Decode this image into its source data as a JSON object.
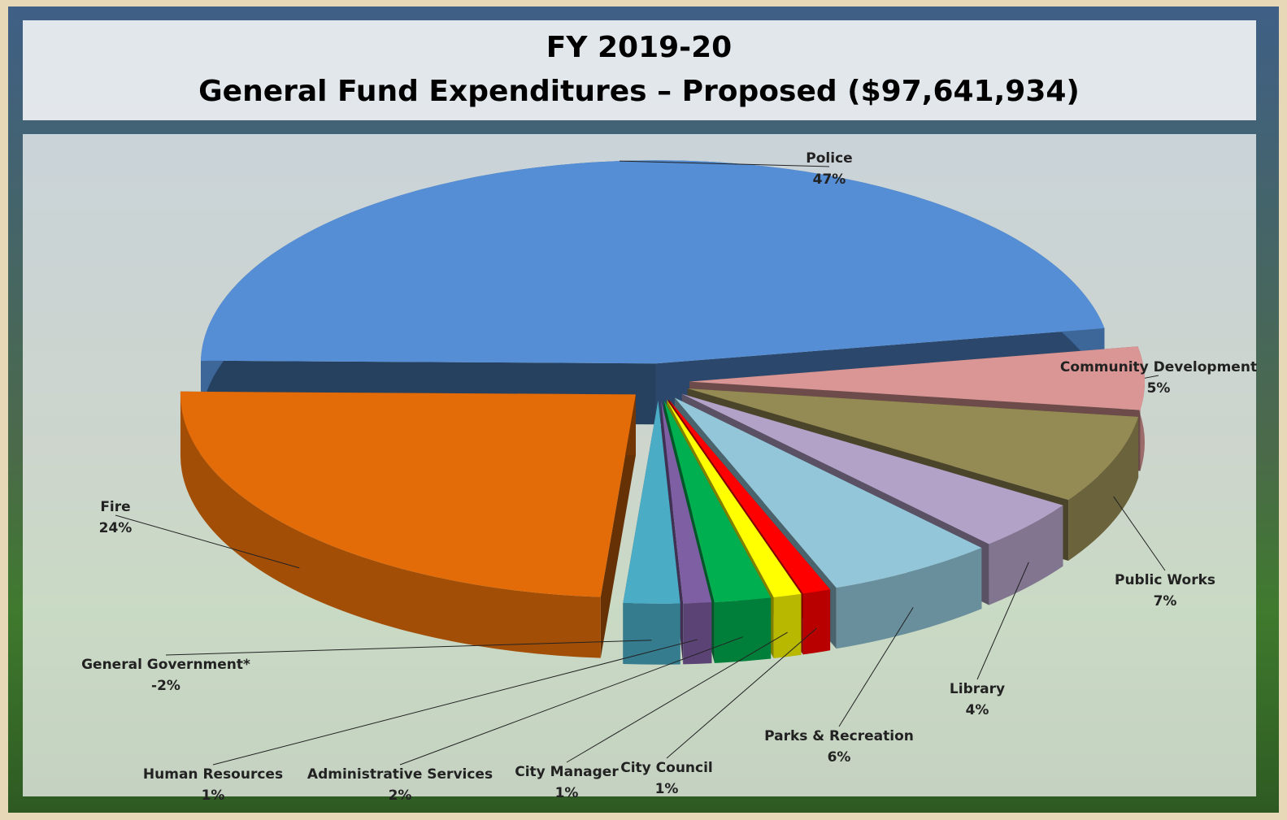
{
  "chart_data": {
    "type": "pie3d",
    "title": "FY 2019-20",
    "subtitle": "General Fund Expenditures – Proposed ($97,641,934)",
    "categories": [
      "Police",
      "Community Development",
      "Public Works",
      "Library",
      "Parks & Recreation",
      "City Council",
      "City Manager",
      "Administrative Services",
      "Human Resources",
      "General Government*",
      "Fire"
    ],
    "values": [
      47,
      5,
      7,
      4,
      6,
      1,
      1,
      2,
      1,
      -2,
      24
    ],
    "value_labels": [
      "47%",
      "5%",
      "7%",
      "4%",
      "6%",
      "1%",
      "1%",
      "2%",
      "1%",
      "-2%",
      "24%"
    ],
    "colors": [
      "#558ed5",
      "#d99694",
      "#948a54",
      "#b3a2c7",
      "#93c6d9",
      "#ff0000",
      "#ffff00",
      "#00b050",
      "#7f5fa3",
      "#4bacc6",
      "#e36c09"
    ]
  }
}
